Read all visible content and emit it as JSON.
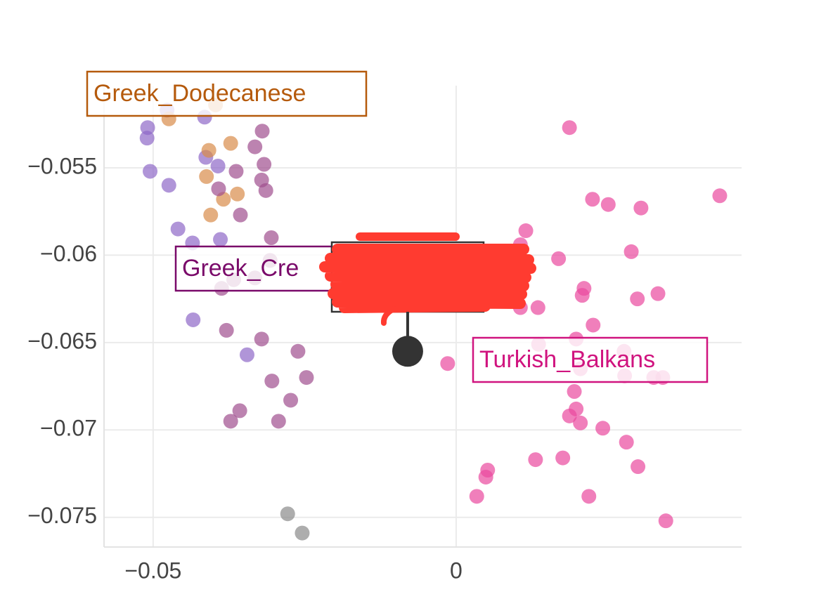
{
  "chart_data": {
    "type": "scatter",
    "xlim": [
      -0.0581,
      0.0471
    ],
    "ylim": [
      -0.0767,
      -0.0503
    ],
    "xticks": [
      {
        "value": -0.05,
        "label": "−0.05"
      },
      0
    ],
    "yticks": [
      {
        "value": -0.055,
        "label": "−0.055"
      },
      {
        "value": -0.06,
        "label": "−0.06"
      },
      {
        "value": -0.065,
        "label": "−0.065"
      },
      {
        "value": -0.07,
        "label": "−0.07"
      },
      {
        "value": -0.075,
        "label": "−0.075"
      }
    ],
    "grid": true,
    "series": [
      {
        "color": "#8f68c8",
        "x": [
          -0.0509,
          -0.051,
          -0.0505,
          -0.0474,
          -0.0415,
          -0.0477,
          -0.0413,
          -0.0393,
          -0.0459,
          -0.0435,
          -0.0389,
          -0.0434,
          -0.0345
        ],
        "values": [
          -0.0527,
          -0.0533,
          -0.0552,
          -0.056,
          -0.0521,
          -0.0517,
          -0.0544,
          -0.0549,
          -0.0585,
          -0.0593,
          -0.0591,
          -0.0637,
          -0.0657
        ]
      },
      {
        "color": "#d98c4a",
        "x": [
          -0.0474,
          -0.0397,
          -0.0408,
          -0.0372,
          -0.0412,
          -0.0361,
          -0.0384,
          -0.0405
        ],
        "values": [
          -0.0522,
          -0.0514,
          -0.054,
          -0.0536,
          -0.0555,
          -0.0565,
          -0.0568,
          -0.0577
        ]
      },
      {
        "color": "#a04e8f",
        "x": [
          -0.032,
          -0.0332,
          -0.0317,
          -0.0363,
          -0.0321,
          -0.0314,
          -0.0392,
          -0.0356,
          -0.0305,
          -0.0307,
          -0.0332,
          -0.0367,
          -0.0387,
          -0.0379,
          -0.0321,
          -0.0261,
          -0.0247,
          -0.0304,
          -0.0273,
          -0.0357,
          -0.0372,
          -0.0293
        ],
        "values": [
          -0.0529,
          -0.0538,
          -0.0548,
          -0.0552,
          -0.0557,
          -0.0563,
          -0.0562,
          -0.0577,
          -0.059,
          -0.0603,
          -0.0613,
          -0.0614,
          -0.0619,
          -0.0643,
          -0.0648,
          -0.0655,
          -0.067,
          -0.0672,
          -0.0683,
          -0.0689,
          -0.0695,
          -0.0695
        ]
      },
      {
        "color": "#8a8a8a",
        "x": [
          -0.0278,
          -0.0254
        ],
        "values": [
          -0.0748,
          -0.0759
        ]
      },
      {
        "color": "#e9489e",
        "x": [
          0.0187,
          0.0435,
          0.0225,
          0.0251,
          0.0305,
          0.0115,
          0.0106,
          0.0289,
          0.0169,
          0.0211,
          0.0208,
          0.0333,
          0.0299,
          0.0135,
          0.0106,
          0.0226,
          0.0136,
          0.0198,
          0.0277,
          -0.0014,
          0.0205,
          0.0326,
          0.0341,
          0.0278,
          0.0195,
          0.0198,
          0.0187,
          0.0205,
          0.0242,
          0.0281,
          0.0052,
          0.0049,
          0.0131,
          0.0176,
          0.03,
          0.0034,
          0.0219,
          0.0346
        ],
        "values": [
          -0.0527,
          -0.0566,
          -0.0568,
          -0.0571,
          -0.0573,
          -0.0586,
          -0.0594,
          -0.0598,
          -0.0602,
          -0.0619,
          -0.0623,
          -0.0622,
          -0.0625,
          -0.063,
          -0.063,
          -0.064,
          -0.0651,
          -0.0648,
          -0.0655,
          -0.0662,
          -0.0665,
          -0.067,
          -0.067,
          -0.0669,
          -0.0678,
          -0.0688,
          -0.0692,
          -0.0696,
          -0.0699,
          -0.0707,
          -0.0723,
          -0.0727,
          -0.0717,
          -0.0716,
          -0.0721,
          -0.0738,
          -0.0738,
          -0.0752
        ]
      }
    ],
    "hover": {
      "x": -0.008,
      "y": -0.0655
    },
    "annotations": [
      {
        "text": "Greek_Dodecanese"
      },
      {
        "text": "Greek_Cre"
      },
      {
        "text": "Turkish_Balkans"
      }
    ]
  }
}
